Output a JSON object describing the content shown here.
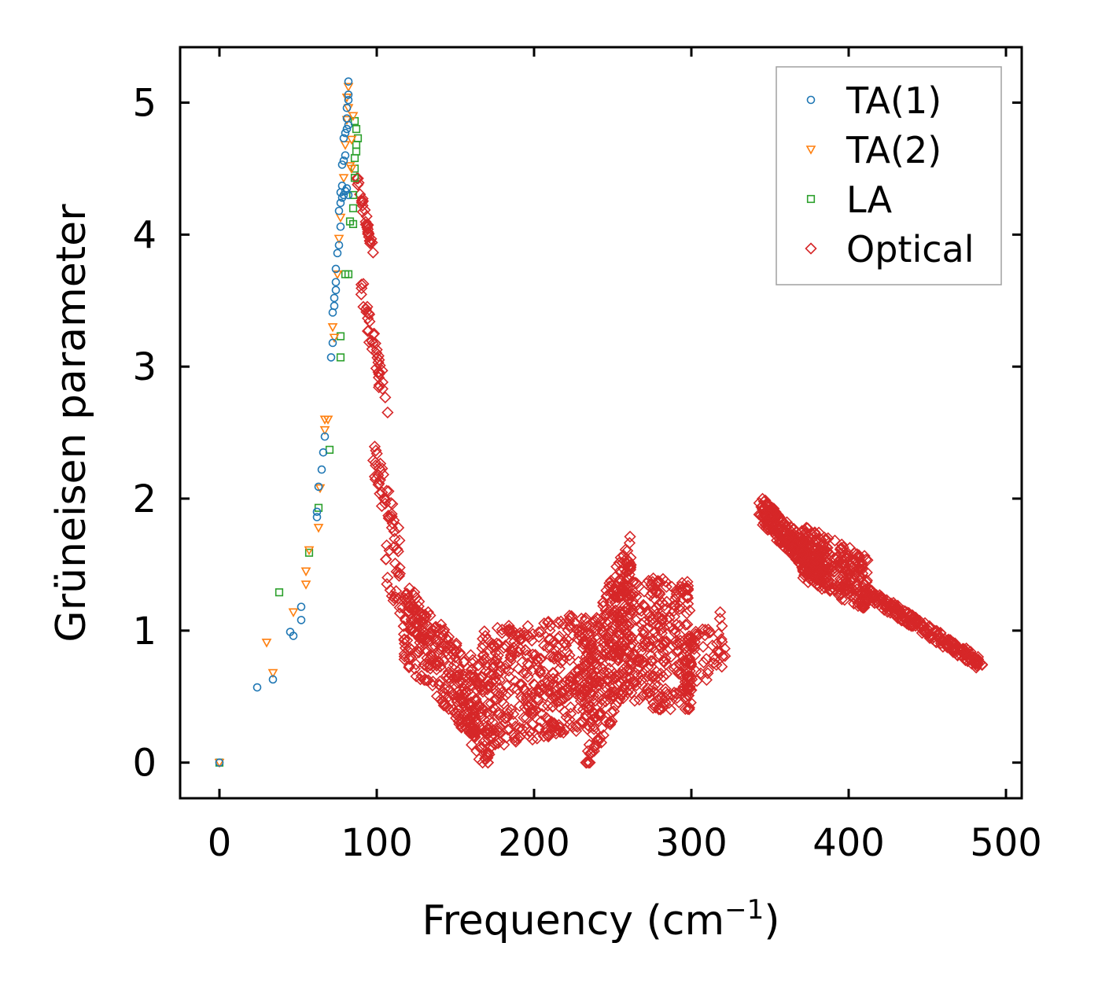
{
  "chart_data": {
    "type": "scatter",
    "title": "",
    "xlabel": "Frequency (cm",
    "xlabel_sup": "−1",
    "xlabel_close": ")",
    "ylabel": "Grüneisen parameter",
    "xlim": [
      -25,
      510
    ],
    "ylim": [
      -0.27,
      5.42
    ],
    "xticks": [
      0,
      100,
      200,
      300,
      400,
      500
    ],
    "yticks": [
      0,
      1,
      2,
      3,
      4,
      5
    ],
    "grid": false,
    "legend_position": "top-right",
    "series": [
      {
        "name": "TA(1)",
        "color": "#1f77b4",
        "marker": "circle",
        "points": [
          [
            0,
            0
          ],
          [
            24,
            0.57
          ],
          [
            34,
            0.63
          ],
          [
            45,
            0.99
          ],
          [
            47,
            0.96
          ],
          [
            52,
            1.08
          ],
          [
            52,
            1.18
          ],
          [
            62,
            1.86
          ],
          [
            62,
            1.9
          ],
          [
            63,
            2.09
          ],
          [
            65,
            2.22
          ],
          [
            66,
            2.35
          ],
          [
            67,
            2.47
          ],
          [
            71,
            3.07
          ],
          [
            72,
            3.18
          ],
          [
            72,
            3.41
          ],
          [
            73,
            3.46
          ],
          [
            73,
            3.52
          ],
          [
            74,
            3.58
          ],
          [
            74,
            3.64
          ],
          [
            74,
            3.74
          ],
          [
            75,
            3.86
          ],
          [
            76,
            3.92
          ],
          [
            77,
            4.06
          ],
          [
            76,
            4.18
          ],
          [
            77,
            4.24
          ],
          [
            78,
            4.28
          ],
          [
            77,
            4.32
          ],
          [
            78,
            4.37
          ],
          [
            79,
            4.3
          ],
          [
            80,
            4.33
          ],
          [
            81,
            4.35
          ],
          [
            82,
            4.3
          ],
          [
            78,
            4.53
          ],
          [
            79,
            4.56
          ],
          [
            80,
            4.6
          ],
          [
            79,
            4.73
          ],
          [
            80,
            4.77
          ],
          [
            81,
            4.8
          ],
          [
            82,
            4.83
          ],
          [
            81,
            4.88
          ],
          [
            81,
            4.96
          ],
          [
            82,
            5.02
          ],
          [
            82,
            5.06
          ],
          [
            82,
            5.16
          ]
        ]
      },
      {
        "name": "TA(2)",
        "color": "#ff7f0e",
        "marker": "triangle-down",
        "points": [
          [
            0,
            0
          ],
          [
            30,
            0.91
          ],
          [
            34,
            0.68
          ],
          [
            47,
            1.14
          ],
          [
            55,
            1.35
          ],
          [
            55,
            1.45
          ],
          [
            57,
            1.61
          ],
          [
            63,
            1.78
          ],
          [
            64,
            2.08
          ],
          [
            67,
            2.52
          ],
          [
            67,
            2.6
          ],
          [
            69,
            2.6
          ],
          [
            72,
            3.3
          ],
          [
            73,
            3.22
          ],
          [
            75,
            3.7
          ],
          [
            76,
            3.97
          ],
          [
            77,
            4.13
          ],
          [
            79,
            4.43
          ],
          [
            80,
            4.68
          ],
          [
            81,
            4.87
          ],
          [
            82,
            4.96
          ],
          [
            81,
            5.04
          ],
          [
            82,
            5.12
          ],
          [
            84,
            4.72
          ],
          [
            85,
            4.9
          ],
          [
            83,
            4.52
          ],
          [
            84,
            4.5
          ]
        ]
      },
      {
        "name": "LA",
        "color": "#2ca02c",
        "marker": "square",
        "points": [
          [
            0,
            0
          ],
          [
            38,
            1.29
          ],
          [
            57,
            1.59
          ],
          [
            63,
            1.93
          ],
          [
            70,
            2.37
          ],
          [
            77,
            3.07
          ],
          [
            77,
            3.23
          ],
          [
            80,
            3.7
          ],
          [
            82,
            3.7
          ],
          [
            83,
            4.1
          ],
          [
            85,
            4.08
          ],
          [
            85,
            4.2
          ],
          [
            85,
            4.3
          ],
          [
            86,
            4.43
          ],
          [
            86,
            4.5
          ],
          [
            86,
            4.58
          ],
          [
            87,
            4.63
          ],
          [
            87,
            4.68
          ],
          [
            88,
            4.73
          ],
          [
            87,
            4.8
          ],
          [
            86,
            4.86
          ]
        ]
      },
      {
        "name": "Optical",
        "color": "#d62728",
        "marker": "diamond",
        "generator": [
          {
            "x": [
              86,
              98
            ],
            "y_start": 4.5,
            "y_end": 3.85,
            "spread": 0.1,
            "n": 30
          },
          {
            "x": [
              90,
              107
            ],
            "y_start": 3.6,
            "y_end": 2.65,
            "spread": 0.25,
            "n": 40
          },
          {
            "x": [
              97,
              115
            ],
            "y_start": 2.35,
            "y_end": 1.6,
            "spread": 0.3,
            "n": 45
          },
          {
            "x": [
              105,
              135
            ],
            "y_start": 1.5,
            "y_end": 0.9,
            "spread": 0.35,
            "n": 60
          },
          {
            "x": [
              117,
              165
            ],
            "y_start": 1.05,
            "y_end": 0.45,
            "spread": 0.6,
            "n": 230
          },
          {
            "x": [
              150,
              172
            ],
            "y_start": 0.55,
            "y_end": 0.1,
            "spread": 0.45,
            "n": 70
          },
          {
            "x": [
              165,
              235
            ],
            "y_start": 0.55,
            "y_end": 0.7,
            "spread": 0.9,
            "n": 420
          },
          {
            "x": [
              233,
              262
            ],
            "y_start": 0.4,
            "y_end": 1.2,
            "spread": 1.1,
            "n": 300
          },
          {
            "x": [
              250,
              300
            ],
            "y_start": 0.9,
            "y_end": 0.9,
            "spread": 1.0,
            "n": 320
          },
          {
            "x": [
              295,
              322
            ],
            "y_start": 0.7,
            "y_end": 0.95,
            "spread": 0.45,
            "n": 70
          },
          {
            "x": [
              343,
              385
            ],
            "y_start": 1.93,
            "y_end": 1.42,
            "spread": 0.22,
            "n": 260
          },
          {
            "x": [
              370,
              412
            ],
            "y_start": 1.6,
            "y_end": 1.35,
            "spread": 0.42,
            "n": 280
          },
          {
            "x": [
              410,
              485
            ],
            "y_start": 1.3,
            "y_end": 0.74,
            "spread": 0.1,
            "n": 230
          }
        ]
      }
    ]
  }
}
